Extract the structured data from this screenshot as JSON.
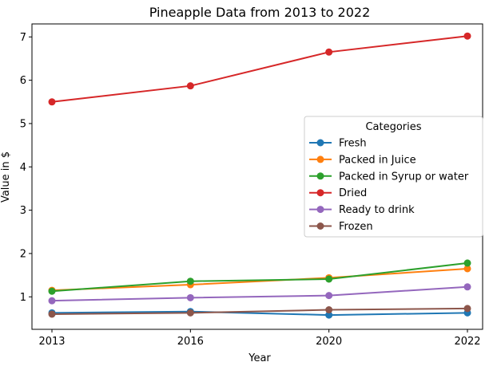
{
  "chart_data": {
    "type": "line",
    "title": "Pineapple Data from 2013 to 2022",
    "xlabel": "Year",
    "ylabel": "Value in $",
    "categories": [
      "2013",
      "2016",
      "2020",
      "2022"
    ],
    "ylim": [
      0.25,
      7.3
    ],
    "yticks": [
      "1",
      "2",
      "3",
      "4",
      "5",
      "6",
      "7"
    ],
    "grid": false,
    "legend": {
      "title": "Categories",
      "placement": "center-right"
    },
    "series": [
      {
        "name": "Fresh",
        "color": "#1f77b4",
        "values": [
          0.63,
          0.66,
          0.58,
          0.63
        ]
      },
      {
        "name": "Packed in Juice",
        "color": "#ff7f0e",
        "values": [
          1.15,
          1.28,
          1.44,
          1.65
        ]
      },
      {
        "name": "Packed in Syrup or water",
        "color": "#2ca02c",
        "values": [
          1.13,
          1.36,
          1.41,
          1.78
        ]
      },
      {
        "name": "Dried",
        "color": "#d62728",
        "values": [
          5.5,
          5.87,
          6.65,
          7.02
        ]
      },
      {
        "name": "Ready to drink",
        "color": "#9467bd",
        "values": [
          0.91,
          0.98,
          1.03,
          1.23
        ]
      },
      {
        "name": "Frozen",
        "color": "#8c564b",
        "values": [
          0.6,
          0.63,
          0.7,
          0.73
        ]
      }
    ]
  }
}
